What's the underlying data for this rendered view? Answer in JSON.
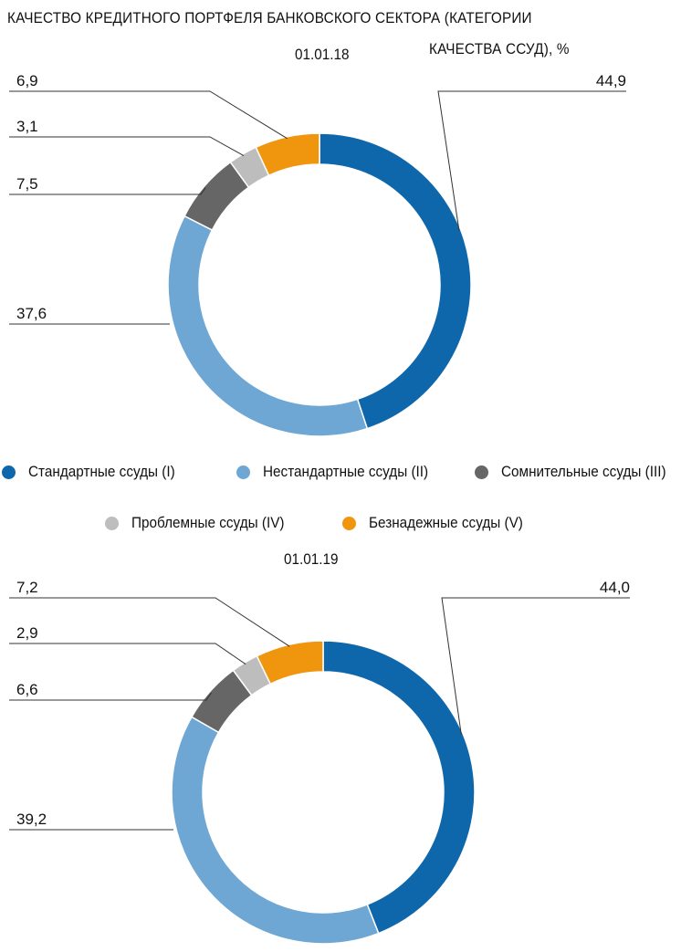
{
  "title_line1": "КАЧЕСТВО КРЕДИТНОГО ПОРТФЕЛЯ БАНКОВСКОГО СЕКТОРА (КАТЕГОРИИ",
  "title_line2": "КАЧЕСТВА ССУД), %",
  "legend": [
    {
      "label": "Стандартные ссуды (I)",
      "color": "#0f67ab"
    },
    {
      "label": "Нестандартные ссуды (II)",
      "color": "#6ea7d3"
    },
    {
      "label": "Сомнительные ссуды (III)",
      "color": "#666666"
    },
    {
      "label": "Проблемные ссуды (IV)",
      "color": "#bdbdbd"
    },
    {
      "label": "Безнадежные ссуды (V)",
      "color": "#f0960e"
    }
  ],
  "chart_data": [
    {
      "type": "pie",
      "variant": "donut",
      "title": "01.01.18",
      "categories": [
        "Стандартные ссуды (I)",
        "Нестандартные ссуды (II)",
        "Сомнительные ссуды (III)",
        "Проблемные ссуды (IV)",
        "Безнадежные ссуды (V)"
      ],
      "values": [
        44.9,
        37.6,
        7.5,
        3.1,
        6.9
      ],
      "labels": [
        "44,9",
        "37,6",
        "7,5",
        "3,1",
        "6,9"
      ],
      "colors": [
        "#0f67ab",
        "#6ea7d3",
        "#666666",
        "#bdbdbd",
        "#f0960e"
      ]
    },
    {
      "type": "pie",
      "variant": "donut",
      "title": "01.01.19",
      "categories": [
        "Стандартные ссуды (I)",
        "Нестандартные ссуды (II)",
        "Сомнительные ссуды (III)",
        "Проблемные ссуды (IV)",
        "Безнадежные ссуды (V)"
      ],
      "values": [
        44.0,
        39.2,
        6.6,
        2.9,
        7.2
      ],
      "labels": [
        "44,0",
        "39,2",
        "6,6",
        "2,9",
        "7,2"
      ],
      "colors": [
        "#0f67ab",
        "#6ea7d3",
        "#666666",
        "#bdbdbd",
        "#f0960e"
      ]
    }
  ]
}
